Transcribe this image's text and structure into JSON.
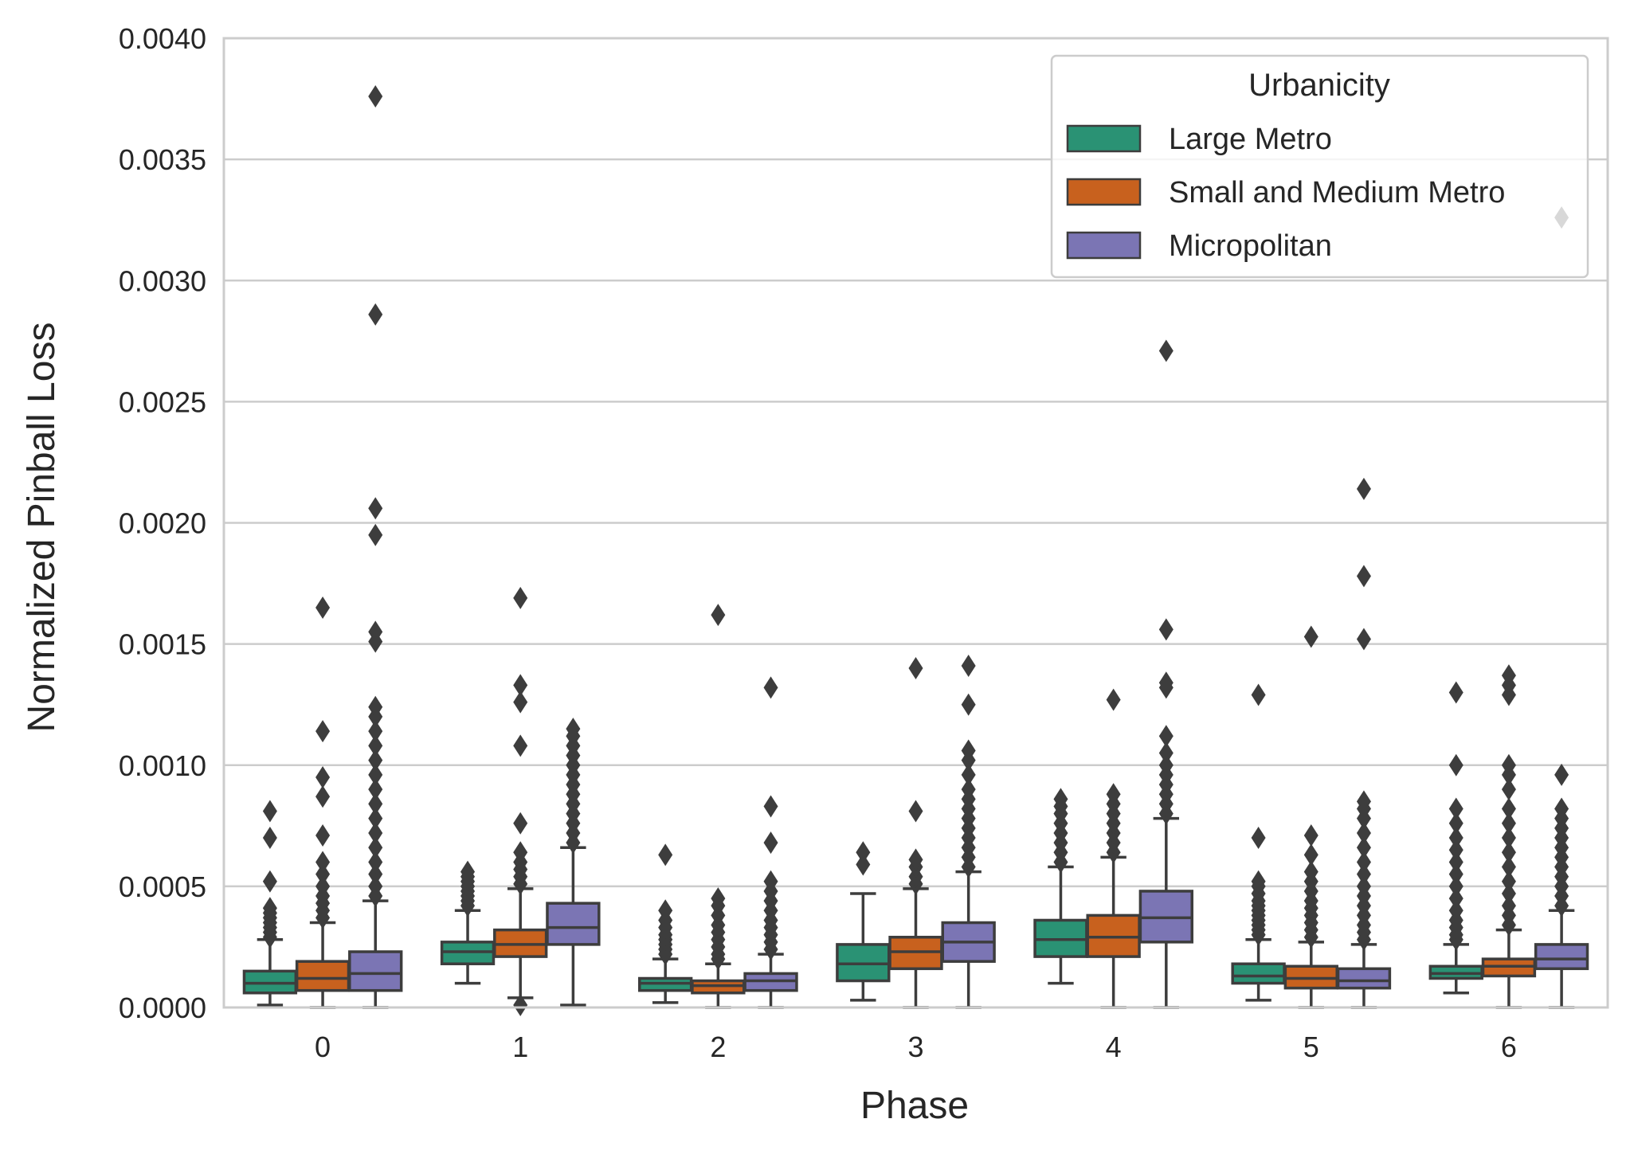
{
  "chart_data": {
    "type": "boxplot",
    "title": "",
    "xlabel": "Phase",
    "ylabel": "Normalized Pinball Loss",
    "ylim": [
      0,
      0.004
    ],
    "yticks": [
      "0.0000",
      "0.0005",
      "0.0010",
      "0.0015",
      "0.0020",
      "0.0025",
      "0.0030",
      "0.0035",
      "0.0040"
    ],
    "categories": [
      "0",
      "1",
      "2",
      "3",
      "4",
      "5",
      "6"
    ],
    "grid": "horizontal",
    "legend": {
      "title": "Urbanicity",
      "position": "top-right",
      "entries": [
        "Large Metro",
        "Small and Medium Metro",
        "Micropolitan"
      ]
    },
    "series": [
      {
        "name": "Large Metro",
        "color": "#2a9274",
        "boxes": [
          {
            "whislo": 1e-05,
            "q1": 6e-05,
            "med": 0.0001,
            "q3": 0.00015,
            "whishi": 0.00028,
            "fliers": [
              0.00029,
              0.00031,
              0.00033,
              0.00035,
              0.00037,
              0.00039,
              0.00041,
              0.00052,
              0.0007,
              0.00081
            ]
          },
          {
            "whislo": 0.0001,
            "q1": 0.00018,
            "med": 0.00023,
            "q3": 0.00027,
            "whishi": 0.0004,
            "fliers": [
              0.00042,
              0.00044,
              0.00046,
              0.00048,
              0.0005,
              0.00052,
              0.00054,
              0.00056
            ]
          },
          {
            "whislo": 2e-05,
            "q1": 7e-05,
            "med": 0.0001,
            "q3": 0.00012,
            "whishi": 0.0002,
            "fliers": [
              0.00022,
              0.00024,
              0.00026,
              0.00028,
              0.0003,
              0.00033,
              0.00036,
              0.0004,
              0.00063
            ]
          },
          {
            "whislo": 3e-05,
            "q1": 0.00011,
            "med": 0.00018,
            "q3": 0.00026,
            "whishi": 0.00047,
            "fliers": [
              0.00059,
              0.00064
            ]
          },
          {
            "whislo": 0.0001,
            "q1": 0.00021,
            "med": 0.00028,
            "q3": 0.00036,
            "whishi": 0.00058,
            "fliers": [
              0.0006,
              0.00064,
              0.00068,
              0.00072,
              0.00076,
              0.0008,
              0.00083,
              0.00086
            ]
          },
          {
            "whislo": 3e-05,
            "q1": 0.0001,
            "med": 0.00013,
            "q3": 0.00018,
            "whishi": 0.00028,
            "fliers": [
              0.0003,
              0.00032,
              0.00034,
              0.00036,
              0.00038,
              0.0004,
              0.00042,
              0.00044,
              0.00047,
              0.0005,
              0.00052,
              0.0007,
              0.00129
            ]
          },
          {
            "whislo": 6e-05,
            "q1": 0.00012,
            "med": 0.00014,
            "q3": 0.00017,
            "whishi": 0.00026,
            "fliers": [
              0.00028,
              0.0003,
              0.00033,
              0.00036,
              0.0004,
              0.00045,
              0.0005,
              0.00055,
              0.0006,
              0.00065,
              0.0007,
              0.00076,
              0.00082,
              0.001,
              0.0013
            ]
          }
        ]
      },
      {
        "name": "Small and Medium Metro",
        "color": "#c8611e",
        "boxes": [
          {
            "whislo": 0.0,
            "q1": 7e-05,
            "med": 0.00012,
            "q3": 0.00019,
            "whishi": 0.00035,
            "fliers": [
              0.00037,
              0.0004,
              0.00043,
              0.00046,
              0.0005,
              0.00055,
              0.0006,
              0.00071,
              0.00087,
              0.00095,
              0.00114,
              0.00165
            ]
          },
          {
            "whislo": 4e-05,
            "q1": 0.00021,
            "med": 0.00026,
            "q3": 0.00032,
            "whishi": 0.00049,
            "fliers": [
              0.00051,
              0.00054,
              0.00057,
              0.0006,
              0.00064,
              0.00076,
              0.00108,
              0.00126,
              0.00133,
              0.00169,
              1e-05
            ]
          },
          {
            "whislo": 0.0,
            "q1": 6e-05,
            "med": 9e-05,
            "q3": 0.00011,
            "whishi": 0.00018,
            "fliers": [
              0.0002,
              0.00022,
              0.00025,
              0.00028,
              0.00031,
              0.00034,
              0.00038,
              0.00042,
              0.00045,
              0.00162
            ]
          },
          {
            "whislo": 0.0,
            "q1": 0.00016,
            "med": 0.00023,
            "q3": 0.00029,
            "whishi": 0.00049,
            "fliers": [
              0.00051,
              0.00054,
              0.00058,
              0.00061,
              0.00081,
              0.0014
            ]
          },
          {
            "whislo": 0.0,
            "q1": 0.00021,
            "med": 0.00029,
            "q3": 0.00038,
            "whishi": 0.00062,
            "fliers": [
              0.00064,
              0.00068,
              0.00072,
              0.00076,
              0.0008,
              0.00084,
              0.00088,
              0.00127
            ]
          },
          {
            "whislo": 0.0,
            "q1": 8e-05,
            "med": 0.00012,
            "q3": 0.00017,
            "whishi": 0.00027,
            "fliers": [
              0.00029,
              0.00032,
              0.00035,
              0.00038,
              0.00041,
              0.00044,
              0.00048,
              0.00052,
              0.00056,
              0.00063,
              0.00071,
              0.00153
            ]
          },
          {
            "whislo": 0.0,
            "q1": 0.00013,
            "med": 0.00017,
            "q3": 0.0002,
            "whishi": 0.00032,
            "fliers": [
              0.00034,
              0.00038,
              0.00042,
              0.00047,
              0.00052,
              0.00058,
              0.00064,
              0.0007,
              0.00076,
              0.00082,
              0.0009,
              0.00096,
              0.001,
              0.00129,
              0.00133,
              0.00137
            ]
          }
        ]
      },
      {
        "name": "Micropolitan",
        "color": "#7b75b4",
        "boxes": [
          {
            "whislo": 0.0,
            "q1": 7e-05,
            "med": 0.00014,
            "q3": 0.00023,
            "whishi": 0.00044,
            "fliers": [
              0.00046,
              0.0005,
              0.00055,
              0.0006,
              0.00066,
              0.00072,
              0.00078,
              0.00084,
              0.0009,
              0.00096,
              0.00102,
              0.00108,
              0.00114,
              0.0012,
              0.00124,
              0.00151,
              0.00155,
              0.00195,
              0.00206,
              0.00286,
              0.00376
            ]
          },
          {
            "whislo": 1e-05,
            "q1": 0.00026,
            "med": 0.00033,
            "q3": 0.00043,
            "whishi": 0.00066,
            "fliers": [
              0.00068,
              0.00072,
              0.00076,
              0.0008,
              0.00084,
              0.00088,
              0.00092,
              0.00096,
              0.001,
              0.00104,
              0.00108,
              0.00112,
              0.00115
            ]
          },
          {
            "whislo": 0.0,
            "q1": 7e-05,
            "med": 0.00011,
            "q3": 0.00014,
            "whishi": 0.00022,
            "fliers": [
              0.00024,
              0.00027,
              0.0003,
              0.00033,
              0.00036,
              0.0004,
              0.00044,
              0.00048,
              0.00052,
              0.00068,
              0.00083,
              0.00132
            ]
          },
          {
            "whislo": 0.0,
            "q1": 0.00019,
            "med": 0.00027,
            "q3": 0.00035,
            "whishi": 0.00056,
            "fliers": [
              0.00058,
              0.00062,
              0.00066,
              0.0007,
              0.00074,
              0.00078,
              0.00082,
              0.00086,
              0.0009,
              0.00096,
              0.00102,
              0.00106,
              0.00125,
              0.00141
            ]
          },
          {
            "whislo": 0.0,
            "q1": 0.00027,
            "med": 0.00037,
            "q3": 0.00048,
            "whishi": 0.00078,
            "fliers": [
              0.0008,
              0.00084,
              0.00088,
              0.00092,
              0.00096,
              0.001,
              0.00105,
              0.00112,
              0.00132,
              0.00134,
              0.00156,
              0.00271
            ]
          },
          {
            "whislo": 0.0,
            "q1": 8e-05,
            "med": 0.00011,
            "q3": 0.00016,
            "whishi": 0.00026,
            "fliers": [
              0.00028,
              0.00031,
              0.00034,
              0.00038,
              0.00042,
              0.00046,
              0.0005,
              0.00055,
              0.0006,
              0.00066,
              0.00072,
              0.00078,
              0.00082,
              0.00085,
              0.00152,
              0.00178,
              0.00214
            ]
          },
          {
            "whislo": 0.0,
            "q1": 0.00016,
            "med": 0.0002,
            "q3": 0.00026,
            "whishi": 0.0004,
            "fliers": [
              0.00042,
              0.00046,
              0.0005,
              0.00054,
              0.00058,
              0.00062,
              0.00066,
              0.0007,
              0.00074,
              0.00078,
              0.00082,
              0.00096,
              0.00326
            ]
          }
        ]
      }
    ]
  }
}
